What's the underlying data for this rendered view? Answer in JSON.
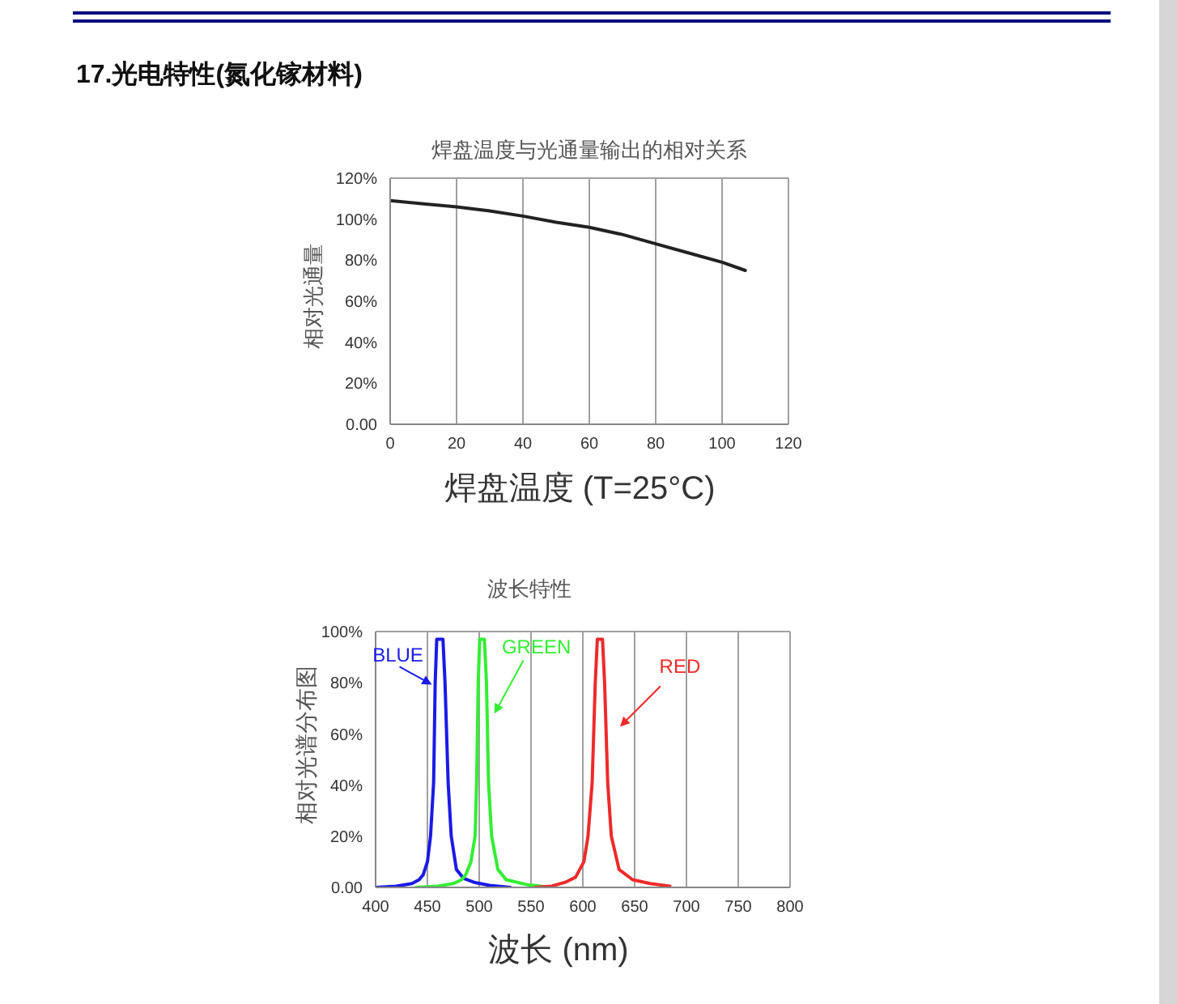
{
  "chart_data": [
    {
      "type": "line",
      "title": "焊盘温度与光通量输出的相对关系",
      "xlabel": "焊盘温度 (T=25°C)",
      "ylabel": "相对光通量",
      "annotations": [
        "17.光电特性(氮化镓材料)"
      ],
      "x": [
        0,
        10,
        20,
        30,
        40,
        50,
        60,
        70,
        80,
        90,
        100,
        107
      ],
      "values": [
        109,
        107.5,
        106,
        104,
        101.5,
        98.5,
        96,
        92.5,
        88,
        83.5,
        79,
        75
      ],
      "color": "#222222",
      "xlim": [
        0,
        120
      ],
      "ylim": [
        0,
        120
      ],
      "xticks": [
        0,
        20,
        40,
        60,
        80,
        100,
        120
      ],
      "yticks": [
        {
          "value": 0,
          "label": "0.00"
        },
        {
          "value": 20,
          "label": "20%"
        },
        {
          "value": 40,
          "label": "40%"
        },
        {
          "value": 60,
          "label": "60%"
        },
        {
          "value": 80,
          "label": "80%"
        },
        {
          "value": 100,
          "label": "100%"
        },
        {
          "value": 120,
          "label": "120%"
        }
      ],
      "grid": true
    },
    {
      "type": "line",
      "title": "波长特性",
      "xlabel": "波长 (nm)",
      "ylabel": "相对光谱分布图",
      "series": [
        {
          "name": "BLUE",
          "color": "#1a1ae6",
          "x": [
            400,
            420,
            435,
            442,
            446,
            450,
            453,
            456,
            457.5,
            459,
            462,
            465,
            467,
            470,
            473,
            478,
            485,
            495,
            510,
            530
          ],
          "values": [
            0,
            0.5,
            1.5,
            3,
            5,
            10,
            20,
            41,
            80,
            97,
            97,
            97,
            80,
            41,
            20,
            7,
            3.5,
            2,
            0.8,
            0
          ]
        },
        {
          "name": "GREEN",
          "color": "#33ee33",
          "x": [
            439,
            460,
            475,
            483,
            487,
            492,
            496,
            497.5,
            499,
            500.5,
            503,
            505,
            507,
            509,
            512,
            518,
            526,
            547,
            570
          ],
          "values": [
            0,
            0.5,
            1.5,
            3,
            5,
            10,
            20,
            41,
            80,
            97,
            97,
            97,
            80,
            41,
            20,
            7,
            3,
            1,
            0
          ]
        },
        {
          "name": "RED",
          "color": "#ee2a2a",
          "x": [
            554,
            570,
            583,
            593,
            601,
            605,
            609,
            612,
            614,
            616.5,
            619,
            621,
            624,
            627.5,
            635,
            648,
            665,
            684
          ],
          "values": [
            0,
            0.5,
            2,
            4,
            10,
            20,
            41,
            80,
            97,
            97,
            97,
            80,
            41,
            20,
            7,
            3,
            1.5,
            0.5
          ]
        }
      ],
      "xlim": [
        400,
        800
      ],
      "ylim": [
        0,
        100
      ],
      "xticks": [
        400,
        450,
        500,
        550,
        600,
        650,
        700,
        750,
        800
      ],
      "yticks": [
        {
          "value": 0,
          "label": "0.00"
        },
        {
          "value": 20,
          "label": "20%"
        },
        {
          "value": 40,
          "label": "40%"
        },
        {
          "value": 60,
          "label": "60%"
        },
        {
          "value": 80,
          "label": "80%"
        },
        {
          "value": 100,
          "label": "100%"
        }
      ],
      "grid": true
    }
  ]
}
